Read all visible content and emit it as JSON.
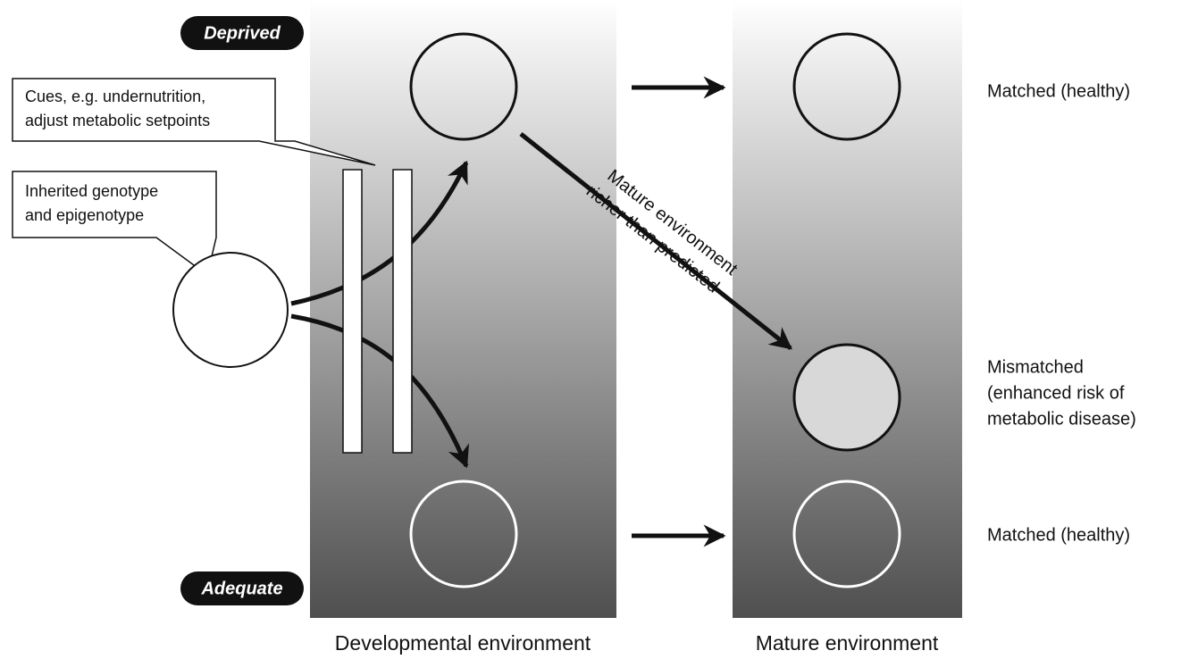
{
  "labels": {
    "deprived": "Deprived",
    "adequate": "Adequate"
  },
  "callouts": [
    {
      "lines": [
        "Cues, e.g. undernutrition,",
        "adjust metabolic setpoints"
      ]
    },
    {
      "lines": [
        "Inherited genotype",
        "and epigenotype"
      ]
    }
  ],
  "annotation": {
    "lines": [
      "Mature environment",
      "richer than predicted"
    ]
  },
  "outcomes": [
    {
      "lines": [
        "Matched (healthy)"
      ]
    },
    {
      "lines": [
        "Mismatched",
        "(enhanced risk of",
        "metabolic disease)"
      ]
    },
    {
      "lines": [
        "Matched (healthy)"
      ]
    }
  ],
  "panels": [
    "Developmental environment",
    "Mature environment"
  ]
}
